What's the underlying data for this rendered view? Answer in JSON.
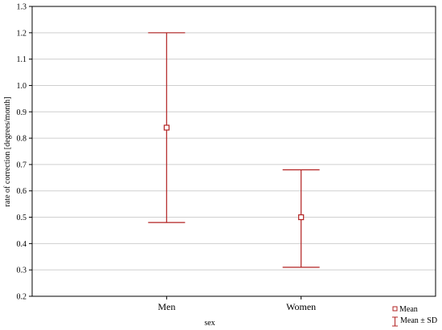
{
  "chart_data": {
    "type": "error_bar",
    "xlabel": "sex",
    "ylabel": "rate of correction [degrees/month]",
    "categories": [
      "Men",
      "Women"
    ],
    "series": [
      {
        "name": "Mean",
        "values": [
          0.84,
          0.5
        ]
      },
      {
        "name": "Mean ± SD",
        "lower": [
          0.48,
          0.31
        ],
        "upper": [
          1.2,
          0.68
        ]
      }
    ],
    "ylim": [
      0.2,
      1.3
    ],
    "yticks": [
      0.2,
      0.3,
      0.4,
      0.5,
      0.6,
      0.7,
      0.8,
      0.9,
      1.0,
      1.1,
      1.2,
      1.3
    ],
    "ytick_labels": [
      "0.2",
      "0.3",
      "0.4",
      "0.5",
      "0.6",
      "0.7",
      "0.8",
      "0.9",
      "1.0",
      "1.1",
      "1.2",
      "1.3"
    ],
    "grid": true,
    "legend_position": "bottom-right",
    "colors": {
      "series": "#b22222",
      "grid": "#cfcfcf",
      "axis": "#000000"
    }
  }
}
